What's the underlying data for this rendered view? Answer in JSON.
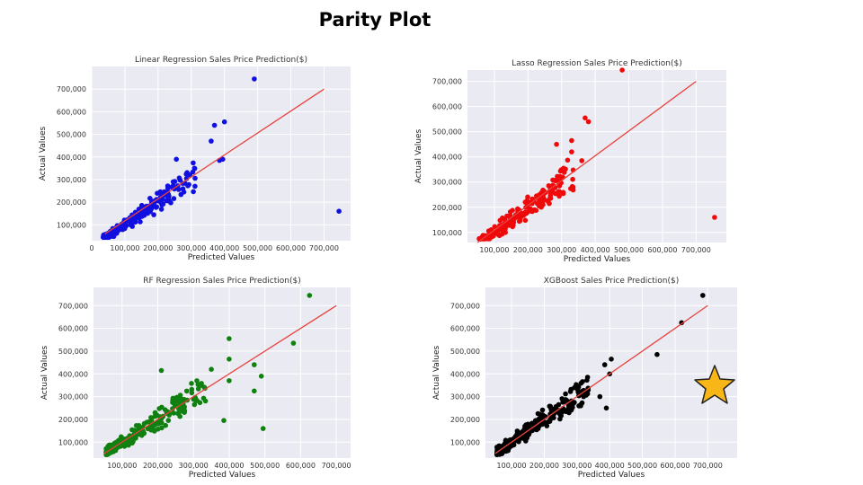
{
  "page": {
    "title": "Parity Plot"
  },
  "colors": {
    "plot_bg": "#eaeaf2",
    "grid": "#ffffff",
    "line": "#e8413c",
    "star": "#f8b617"
  },
  "chart_data": [
    {
      "type": "scatter",
      "title": "Linear Regression Sales Price Prediction($)",
      "xlabel": "Predicted Values",
      "ylabel": "Actual Values",
      "xlim": [
        0,
        780000
      ],
      "ylim": [
        30000,
        800000
      ],
      "xticks": [
        0,
        100000,
        200000,
        300000,
        400000,
        500000,
        600000,
        700000
      ],
      "yticks": [
        100000,
        200000,
        300000,
        400000,
        500000,
        600000,
        700000
      ],
      "grid": true,
      "color": "#1010e0",
      "reference_line": [
        [
          40000,
          60000
        ],
        [
          700000,
          700000
        ]
      ],
      "outliers": [
        [
          490000,
          745000
        ],
        [
          745000,
          160000
        ],
        [
          400000,
          555000
        ],
        [
          370000,
          540000
        ],
        [
          395000,
          390000
        ],
        [
          385000,
          385000
        ],
        [
          360000,
          470000
        ],
        [
          255000,
          390000
        ]
      ],
      "seed": 11
    },
    {
      "type": "scatter",
      "title": "Lasso Regression Sales Price Prediction($)",
      "xlabel": "Predicted Values",
      "ylabel": "Actual Values",
      "xlim": [
        20000,
        790000
      ],
      "ylim": [
        60000,
        745000
      ],
      "xticks": [
        100000,
        200000,
        300000,
        400000,
        500000,
        600000,
        700000
      ],
      "yticks": [
        100000,
        200000,
        300000,
        400000,
        500000,
        600000,
        700000
      ],
      "grid": true,
      "color": "#ee0a0a",
      "reference_line": [
        [
          50000,
          60000
        ],
        [
          700000,
          700000
        ]
      ],
      "outliers": [
        [
          480000,
          745000
        ],
        [
          755000,
          160000
        ],
        [
          370000,
          555000
        ],
        [
          380000,
          540000
        ],
        [
          330000,
          465000
        ],
        [
          285000,
          450000
        ],
        [
          330000,
          420000
        ],
        [
          360000,
          385000
        ]
      ],
      "seed": 23
    },
    {
      "type": "scatter",
      "title": "RF Regression Sales Price Prediction($)",
      "xlabel": "Predicted Values",
      "ylabel": "Actual Values",
      "xlim": [
        20000,
        740000
      ],
      "ylim": [
        30000,
        780000
      ],
      "xticks": [
        100000,
        200000,
        300000,
        400000,
        500000,
        600000,
        700000
      ],
      "yticks": [
        100000,
        200000,
        300000,
        400000,
        500000,
        600000,
        700000
      ],
      "grid": true,
      "color": "#108010",
      "reference_line": [
        [
          50000,
          50000
        ],
        [
          700000,
          700000
        ]
      ],
      "outliers": [
        [
          625000,
          745000
        ],
        [
          580000,
          535000
        ],
        [
          400000,
          555000
        ],
        [
          400000,
          465000
        ],
        [
          470000,
          440000
        ],
        [
          490000,
          390000
        ],
        [
          470000,
          325000
        ],
        [
          495000,
          160000
        ],
        [
          385000,
          195000
        ],
        [
          350000,
          420000
        ],
        [
          400000,
          370000
        ],
        [
          210000,
          415000
        ]
      ],
      "seed": 37
    },
    {
      "type": "scatter",
      "title": "XGBoost Sales Price Prediction($)",
      "xlabel": "Predicted Values",
      "ylabel": "Actual Values",
      "xlim": [
        20000,
        790000
      ],
      "ylim": [
        30000,
        780000
      ],
      "xticks": [
        100000,
        200000,
        300000,
        400000,
        500000,
        600000,
        700000
      ],
      "yticks": [
        100000,
        200000,
        300000,
        400000,
        500000,
        600000,
        700000
      ],
      "grid": true,
      "color": "#000000",
      "reference_line": [
        [
          50000,
          50000
        ],
        [
          700000,
          700000
        ]
      ],
      "outliers": [
        [
          685000,
          745000
        ],
        [
          620000,
          625000
        ],
        [
          545000,
          485000
        ],
        [
          400000,
          400000
        ],
        [
          385000,
          440000
        ],
        [
          405000,
          465000
        ],
        [
          390000,
          250000
        ],
        [
          370000,
          300000
        ]
      ],
      "seed": 41
    }
  ]
}
